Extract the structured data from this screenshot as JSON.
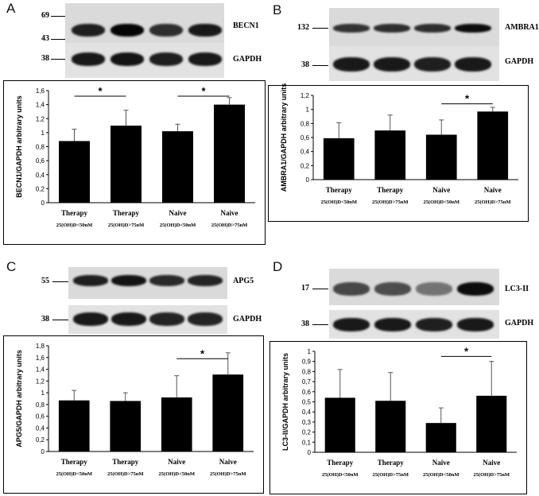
{
  "panels": [
    {
      "letter": "A",
      "blot": {
        "rows": [
          {
            "gene": "BECN1",
            "markers": [
              "69",
              "43"
            ],
            "intensities": [
              0.88,
              0.98,
              0.82,
              0.9
            ]
          },
          {
            "gene": "GAPDH",
            "markers": [
              "38"
            ],
            "intensities": [
              0.9,
              0.92,
              0.88,
              0.9
            ]
          }
        ]
      },
      "chart_data": {
        "type": "bar",
        "ylabel": "BECN1/GAPDH arbitrary units",
        "categories": [
          [
            "Therapy",
            "25(OH)D<50nM"
          ],
          [
            "Therapy",
            "25(OH)D>75nM"
          ],
          [
            "Naive",
            "25(OH)D<50nM"
          ],
          [
            "Naive",
            "25(OH)D>75nM"
          ]
        ],
        "values": [
          0.88,
          1.1,
          1.02,
          1.4
        ],
        "errors": [
          0.17,
          0.22,
          0.1,
          0.1
        ],
        "ylim": [
          0,
          1.6
        ],
        "ytick_step": 0.2,
        "yticks": [
          "0",
          "0,2",
          "0,4",
          "0,6",
          "0,8",
          "1",
          "1,2",
          "1,4",
          "1,6"
        ],
        "significance": [
          {
            "from": 0,
            "to": 1,
            "y": 1.52,
            "label": "*"
          },
          {
            "from": 2,
            "to": 3,
            "y": 1.52,
            "label": "*"
          }
        ]
      }
    },
    {
      "letter": "B",
      "blot": {
        "rows": [
          {
            "gene": "AMBRA1",
            "markers": [
              "132"
            ],
            "intensities": [
              0.8,
              0.82,
              0.82,
              0.95
            ]
          },
          {
            "gene": "GAPDH",
            "markers": [
              "38"
            ],
            "intensities": [
              0.9,
              0.9,
              0.88,
              0.9
            ]
          }
        ]
      },
      "chart_data": {
        "type": "bar",
        "ylabel": "AMBRA1/GAPDH arbitrary units",
        "categories": [
          [
            "Therapy",
            "25(OH)D<50nM"
          ],
          [
            "Therapy",
            "25(OH)D>75nM"
          ],
          [
            "Naive",
            "25(OH)D<50nM"
          ],
          [
            "Naive",
            "25(OH)D>75nM"
          ]
        ],
        "values": [
          0.59,
          0.7,
          0.64,
          0.97
        ],
        "errors": [
          0.22,
          0.22,
          0.21,
          0.06
        ],
        "ylim": [
          0,
          1.2
        ],
        "ytick_step": 0.2,
        "yticks": [
          "0",
          "0,2",
          "0,4",
          "0,6",
          "0,8",
          "1",
          "1,2"
        ],
        "significance": [
          {
            "from": 2,
            "to": 3,
            "y": 1.08,
            "label": "*"
          }
        ]
      }
    },
    {
      "letter": "C",
      "blot": {
        "rows": [
          {
            "gene": "APG5",
            "markers": [
              "55"
            ],
            "intensities": [
              0.88,
              0.92,
              0.84,
              0.86
            ]
          },
          {
            "gene": "GAPDH",
            "markers": [
              "38"
            ],
            "intensities": [
              0.9,
              0.9,
              0.86,
              0.86
            ]
          }
        ]
      },
      "chart_data": {
        "type": "bar",
        "ylabel": "APG5/GAPDH arbitrary units",
        "categories": [
          [
            "Therapy",
            "25(OH)D<50nM"
          ],
          [
            "Therapy",
            "25(OH)D>75nM"
          ],
          [
            "Naive",
            "25(OH)D<50nM"
          ],
          [
            "Naive",
            "25(OH)D>75nM"
          ]
        ],
        "values": [
          0.87,
          0.86,
          0.92,
          1.31
        ],
        "errors": [
          0.17,
          0.14,
          0.37,
          0.37
        ],
        "ylim": [
          0,
          1.8
        ],
        "ytick_step": 0.2,
        "yticks": [
          "0",
          "0,2",
          "0,4",
          "0,6",
          "0,8",
          "1",
          "1,2",
          "1,4",
          "1,6",
          "1,8"
        ],
        "significance": [
          {
            "from": 2,
            "to": 3,
            "y": 1.58,
            "label": "*"
          }
        ]
      }
    },
    {
      "letter": "D",
      "blot": {
        "rows": [
          {
            "gene": "LC3-II",
            "markers": [
              "17"
            ],
            "intensities": [
              0.72,
              0.7,
              0.55,
              0.95
            ]
          },
          {
            "gene": "GAPDH",
            "markers": [
              "38"
            ],
            "intensities": [
              0.9,
              0.9,
              0.88,
              0.9
            ]
          }
        ]
      },
      "chart_data": {
        "type": "bar",
        "ylabel": "LC3-II/GAPDH arbitrary units",
        "categories": [
          [
            "Therapy",
            "25(OH)D<50nM"
          ],
          [
            "Therapy",
            "25(OH)D>75nM"
          ],
          [
            "Naive",
            "25(OH)D<50nM"
          ],
          [
            "Naive",
            "25(OH)D>75nM"
          ]
        ],
        "values": [
          0.54,
          0.51,
          0.29,
          0.56
        ],
        "errors": [
          0.28,
          0.28,
          0.15,
          0.34
        ],
        "ylim": [
          0,
          1
        ],
        "ytick_step": 0.1,
        "yticks": [
          "0",
          "0,1",
          "0,2",
          "0,3",
          "0,4",
          "0,5",
          "0,6",
          "0,7",
          "0,8",
          "0,9",
          "1"
        ],
        "significance": [
          {
            "from": 2,
            "to": 3,
            "y": 0.95,
            "label": "*"
          }
        ]
      }
    }
  ]
}
